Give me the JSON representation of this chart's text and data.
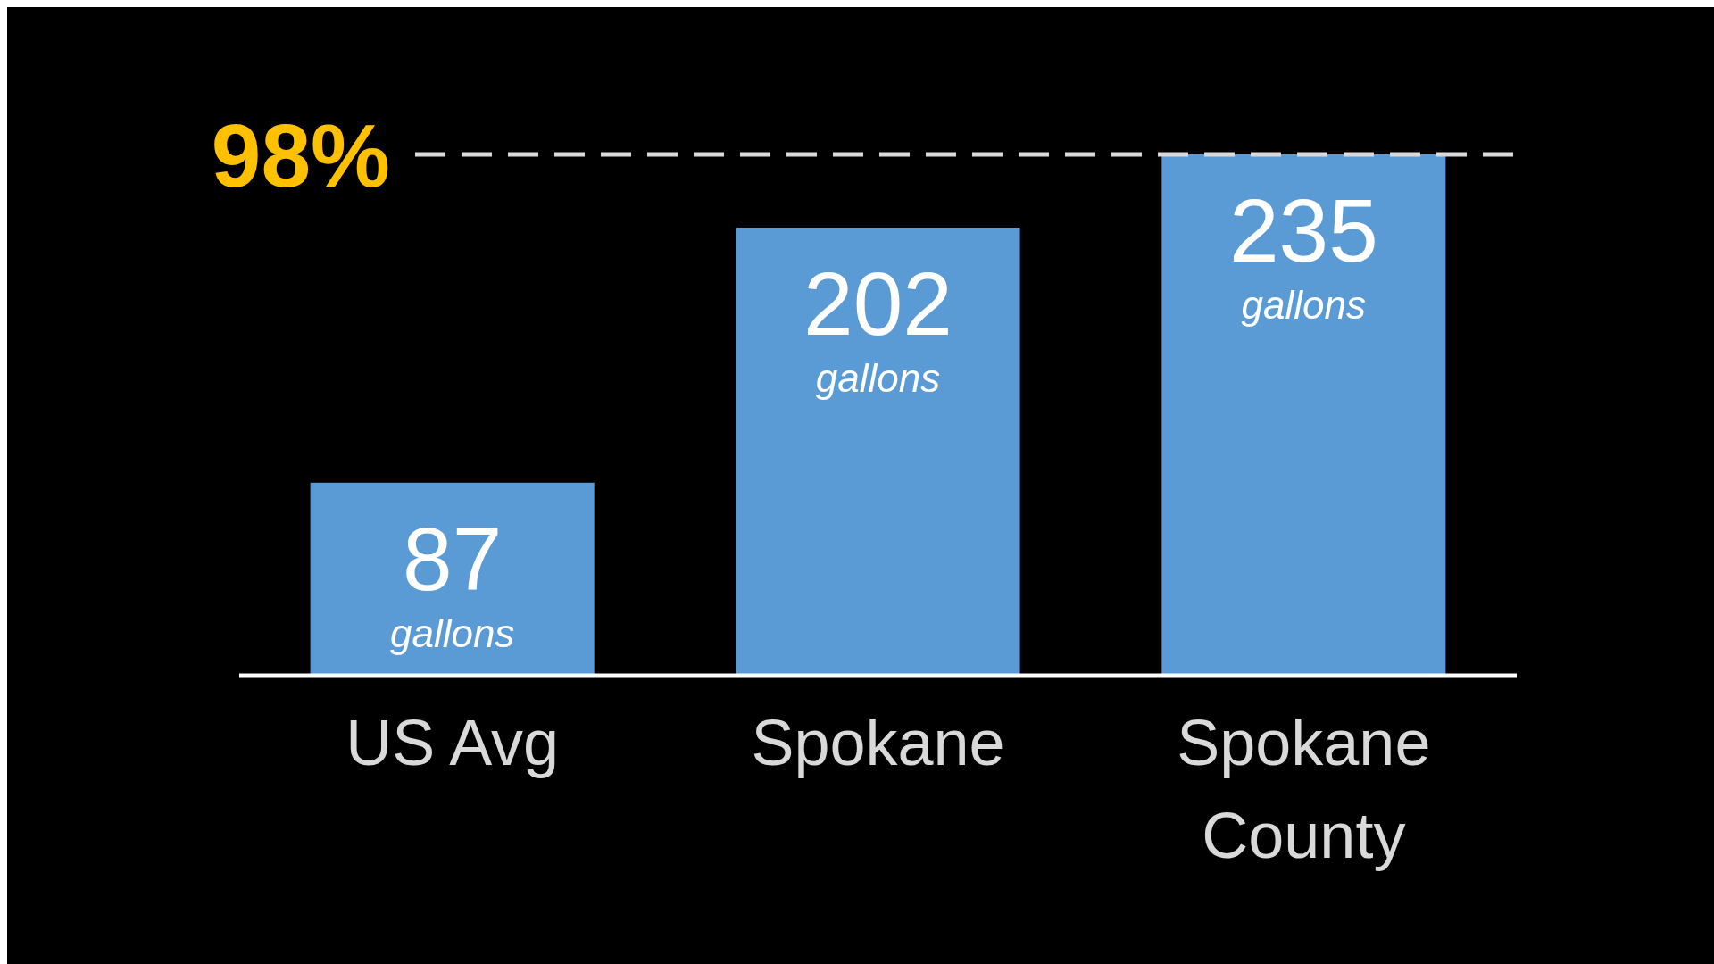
{
  "chart_data": {
    "type": "bar",
    "categories": [
      "US Avg",
      "Spokane",
      "Spokane County"
    ],
    "values": [
      87,
      202,
      235
    ],
    "color": "#5b9bd5",
    "value_labels": [
      "87 gallons",
      "202 gallons",
      "235 gallons"
    ],
    "annotations": [
      "98%"
    ],
    "ref_lines": [
      {
        "axis": "y",
        "value": 235,
        "color": "#d9d9d9",
        "line_style": "dashed"
      }
    ]
  }
}
